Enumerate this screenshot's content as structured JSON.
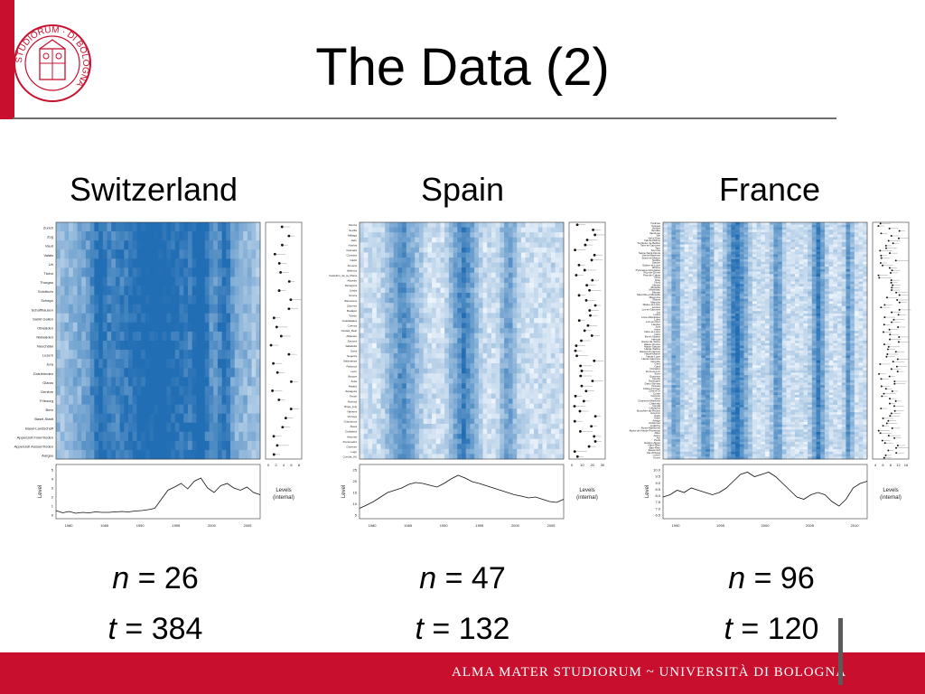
{
  "slide": {
    "title": "The Data (2)",
    "footer": "ALMA MATER STUDIORUM ~ UNIVERSITÀ DI BOLOGNA",
    "colors": {
      "brand_red": "#c8102e",
      "heat_dark": "#2b74b8",
      "heat_light": "#eef4fb"
    }
  },
  "seal": {
    "text": "STUDIORUM · DI BOLOGNA"
  },
  "countries": [
    {
      "name": "Switzerland",
      "n_label": "n",
      "n_eq": " = ",
      "n_value": "26",
      "t_label": "t",
      "t_eq": " = ",
      "t_value": "384",
      "regions": [
        "Zurich",
        "Zug",
        "Vaud",
        "Valais",
        "Uri",
        "Ticino",
        "Thurgau",
        "Solothurn",
        "Schwyz",
        "Schaffhausen",
        "Sankt Gallen",
        "Obwalden",
        "Nidwalden",
        "Neuchâtel",
        "Luzern",
        "Jura",
        "Graubünden",
        "Glarus",
        "Genève",
        "Fribourg",
        "Bern",
        "Basel-Stadt",
        "Basel-Landschaft",
        "Appenzell Innerrhoden",
        "Appenzell Ausserrhoden",
        "Aargau"
      ],
      "levels_axis_ticks": [
        "0",
        "2",
        "4",
        "6",
        "8"
      ],
      "level_axis_ticks": [
        "0",
        "1",
        "2",
        "3",
        "4",
        "5"
      ],
      "year_ticks": [
        "1980",
        "1985",
        "1990",
        "1995",
        "2000",
        "2005"
      ],
      "level_axis_label": "Level",
      "levels_label": "Levels\n(internal)"
    },
    {
      "name": "Spain",
      "n_label": "n",
      "n_eq": " = ",
      "n_value": "47",
      "t_label": "t",
      "t_eq": " = ",
      "t_value": "132",
      "regions": [
        "Murcia",
        "Sevilla",
        "Málaga",
        "Jaén",
        "Huelva",
        "Granada",
        "Córdoba",
        "Cádiz",
        "Almería",
        "Valencia",
        "Castellón_de_la_Plana",
        "Alicante",
        "Tarragona",
        "Lleida",
        "Girona",
        "Barcelona",
        "Cáceres",
        "Badajoz",
        "Toledo",
        "Guadalajara",
        "Cuenca",
        "Ciudad_Real",
        "Albacete",
        "Zamora",
        "Valladolid",
        "Soria",
        "Segovia",
        "Salamanca",
        "Palencia",
        "León",
        "Burgos",
        "Ávila",
        "Madrid",
        "Zaragoza",
        "Teruel",
        "Huesca",
        "Rioja_(La)",
        "Navarra",
        "Vizcaya",
        "Guipúzcoa",
        "Álava",
        "Cantabria",
        "Asturias",
        "Pontevedra",
        "Ourense",
        "Lugo",
        "Coruña_(A)"
      ],
      "levels_axis_ticks": [
        "0",
        "10",
        "20",
        "30"
      ],
      "level_axis_ticks": [
        "5",
        "10",
        "15",
        "20",
        "25"
      ],
      "year_ticks": [
        "1980",
        "1985",
        "1990",
        "1995",
        "2000",
        "2005"
      ],
      "level_axis_label": "Level",
      "levels_label": "Levels\n(internal)"
    },
    {
      "name": "France",
      "n_label": "n",
      "n_eq": " = ",
      "n_value": "96",
      "t_label": "t",
      "t_eq": " = ",
      "t_value": "120",
      "regions": [
        "Yvelines",
        "Vosges",
        "Vienne",
        "Vendée",
        "Vaucluse",
        "Var",
        "Val-d'Oise",
        "Val-de-Marne",
        "Territoire de Belfort",
        "Tarn-et-Garonne",
        "Tarn",
        "Somme",
        "Seine-Saint-Denis",
        "Seine-Maritime",
        "Seine-et-Marne",
        "Sarthe",
        "Savoie",
        "Saône-et-Loire",
        "Rhône",
        "Pyrénées-Orientales",
        "Puy-de-Dôme",
        "Pas-de-Calais",
        "Orne",
        "Oise",
        "Nord",
        "Nièvre",
        "Moselle",
        "Morbihan",
        "Meuse",
        "Meurthe-et-Moselle",
        "Mayenne",
        "Marne",
        "Manche",
        "Maine-et-Loire",
        "Lozère",
        "Lot-et-Garonne",
        "Lot",
        "Loiret",
        "Loire-Atlantique",
        "Loire",
        "Loir-et-Cher",
        "Landes",
        "Jura",
        "Isère",
        "Indre-et-Loire",
        "Indre",
        "Ille-et-Vilaine",
        "Hérault",
        "Hauts-de-Seine",
        "Haute-Vienne",
        "Haute-Savoie",
        "Haute-Saône",
        "Hautes-Pyrénées",
        "Haute-Marne",
        "Haute-Loire",
        "Haute-Garonne",
        "Gironde",
        "Gers",
        "Gard",
        "Finistère",
        "Eure-et-Loir",
        "Eure",
        "Essonne",
        "Doubs",
        "Dordogne",
        "Deux-Sèvres",
        "Creuse",
        "Côtes-d'Armor",
        "Côte-d'Or",
        "Corse",
        "Corrèze",
        "Cher",
        "Charente-Maritime",
        "Charente",
        "Cantal",
        "Calvados",
        "Bouches-du-Rhône",
        "Aveyron",
        "Aude",
        "Aube",
        "Ariège",
        "Ardennes",
        "Ardèche",
        "Alpes-Maritimes",
        "Alpes-de-Haute-Provence",
        "Allier",
        "Aisne",
        "Ain",
        "Paris",
        "Hautes-Alpes",
        "Haut-Rhin",
        "Bas-Rhin",
        "Essonne2",
        "Val-d'Oise2",
        "Loire2",
        "Yonne"
      ],
      "levels_axis_ticks": [
        "4",
        "6",
        "8",
        "12",
        "16"
      ],
      "level_axis_ticks": [
        "6.5",
        "7.0",
        "7.5",
        "8.0",
        "8.5",
        "9.0",
        "9.5",
        "10.0"
      ],
      "year_ticks": [
        "1990",
        "1995",
        "2000",
        "2005",
        "2010"
      ],
      "level_axis_label": "Level",
      "levels_label": "Levels\n(internal)"
    }
  ]
}
